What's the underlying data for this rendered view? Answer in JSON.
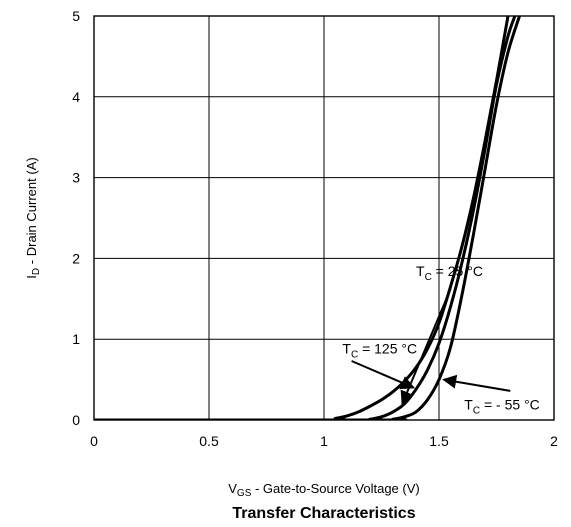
{
  "chart_data": {
    "type": "line",
    "title": "Transfer Characteristics",
    "xlabel": {
      "main": "V",
      "sub": "GS",
      "rest": " - Gate-to-Source Voltage (V)"
    },
    "ylabel": {
      "main": "I",
      "sub": "D",
      "rest": " - Drain Current (A)"
    },
    "xlim": [
      0,
      2
    ],
    "ylim": [
      0,
      5
    ],
    "xticks": [
      "0",
      "0.5",
      "1",
      "1.5",
      "2"
    ],
    "yticks": [
      "0",
      "1",
      "2",
      "3",
      "4",
      "5"
    ],
    "grid": true,
    "line_color": "#000000",
    "series": [
      {
        "name": "T_C = 125 °C",
        "label": {
          "main": "T",
          "sub": "C",
          "rest": " = 125 °C"
        },
        "x": [
          0.0,
          1.0,
          1.05,
          1.1,
          1.15,
          1.2,
          1.25,
          1.3,
          1.35,
          1.4,
          1.45,
          1.5,
          1.55,
          1.6,
          1.65,
          1.7,
          1.75,
          1.8
        ],
        "y": [
          0.0,
          0.0,
          0.02,
          0.05,
          0.1,
          0.17,
          0.25,
          0.35,
          0.48,
          0.65,
          0.88,
          1.2,
          1.65,
          2.15,
          2.75,
          3.45,
          4.2,
          5.0
        ]
      },
      {
        "name": "T_C = 25 °C",
        "label": {
          "main": "T",
          "sub": "C",
          "rest": " = 25 °C"
        },
        "x": [
          0.0,
          1.15,
          1.2,
          1.25,
          1.3,
          1.35,
          1.4,
          1.45,
          1.5,
          1.55,
          1.6,
          1.65,
          1.7,
          1.75,
          1.8,
          1.83
        ],
        "y": [
          0.0,
          0.0,
          0.01,
          0.04,
          0.1,
          0.2,
          0.38,
          0.62,
          0.95,
          1.4,
          1.95,
          2.6,
          3.35,
          4.15,
          4.75,
          5.0
        ]
      },
      {
        "name": "T_C = - 55 °C",
        "label": {
          "main": "T",
          "sub": "C",
          "rest": " = - 55 °C"
        },
        "x": [
          0.0,
          1.25,
          1.3,
          1.35,
          1.4,
          1.45,
          1.5,
          1.55,
          1.6,
          1.65,
          1.7,
          1.75,
          1.8,
          1.85
        ],
        "y": [
          0.0,
          0.0,
          0.01,
          0.04,
          0.1,
          0.25,
          0.5,
          0.9,
          1.55,
          2.3,
          3.1,
          3.9,
          4.55,
          5.0
        ]
      }
    ],
    "annotations": [
      {
        "series": 0,
        "text_at": [
          1.08,
          0.82
        ],
        "text_anchor": "start",
        "arrow_from": [
          1.12,
          0.73
        ],
        "arrow_to": [
          1.39,
          0.4
        ]
      },
      {
        "series": 1,
        "text_at": [
          1.4,
          1.78
        ],
        "text_anchor": "start",
        "arrow_from": [
          1.55,
          1.62
        ],
        "arrow_to": [
          1.34,
          0.2
        ]
      },
      {
        "series": 2,
        "text_at": [
          1.61,
          0.13
        ],
        "text_anchor": "start",
        "arrow_from": [
          1.81,
          0.36
        ],
        "arrow_to": [
          1.52,
          0.5
        ]
      }
    ]
  }
}
